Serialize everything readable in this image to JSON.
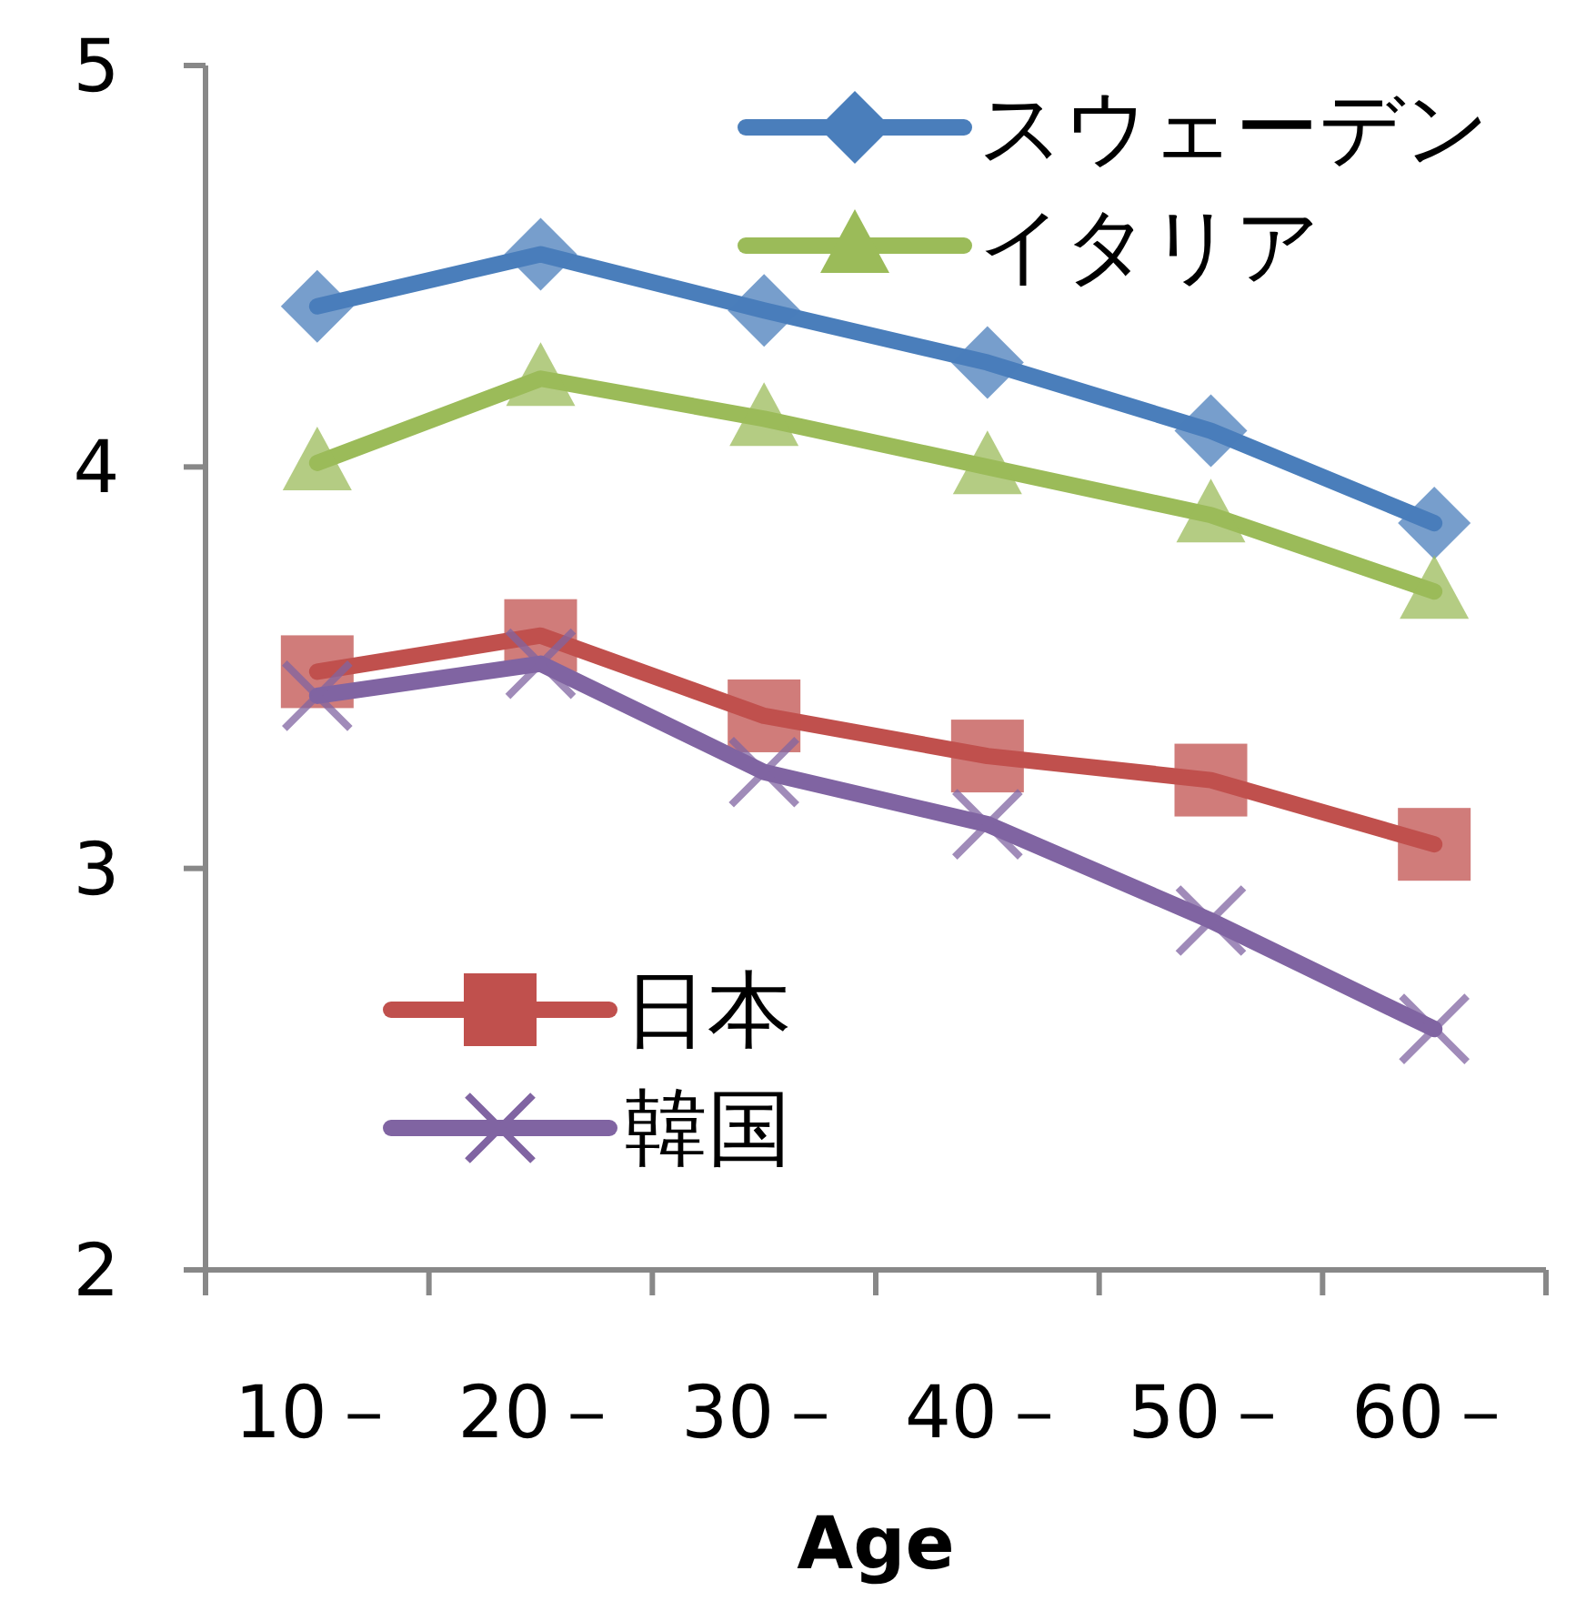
{
  "chart_data": {
    "type": "line",
    "xlabel": "Age",
    "categories": [
      "10－",
      "20－",
      "30－",
      "40－",
      "50－",
      "60－"
    ],
    "ylim": [
      2,
      5
    ],
    "yticks": [
      2,
      3,
      4,
      5
    ],
    "grid": false,
    "legend": "top right",
    "line_style": "solid",
    "series": [
      {
        "name": "スウェーデン",
        "color": "#4a7ebb",
        "marker": "diamond",
        "values": [
          4.4,
          4.53,
          4.39,
          4.26,
          4.09,
          3.86
        ]
      },
      {
        "name": "イタリア",
        "color": "#9bbb59",
        "marker": "triangle",
        "values": [
          4.01,
          4.22,
          4.12,
          4.0,
          3.88,
          3.69
        ]
      },
      {
        "name": "日本",
        "color": "#c0504d",
        "marker": "square",
        "values": [
          3.49,
          3.58,
          3.38,
          3.28,
          3.22,
          3.06
        ]
      },
      {
        "name": "韓国",
        "color": "#8064a2",
        "marker": "cross",
        "values": [
          3.43,
          3.51,
          3.24,
          3.11,
          2.87,
          2.6
        ]
      }
    ]
  }
}
